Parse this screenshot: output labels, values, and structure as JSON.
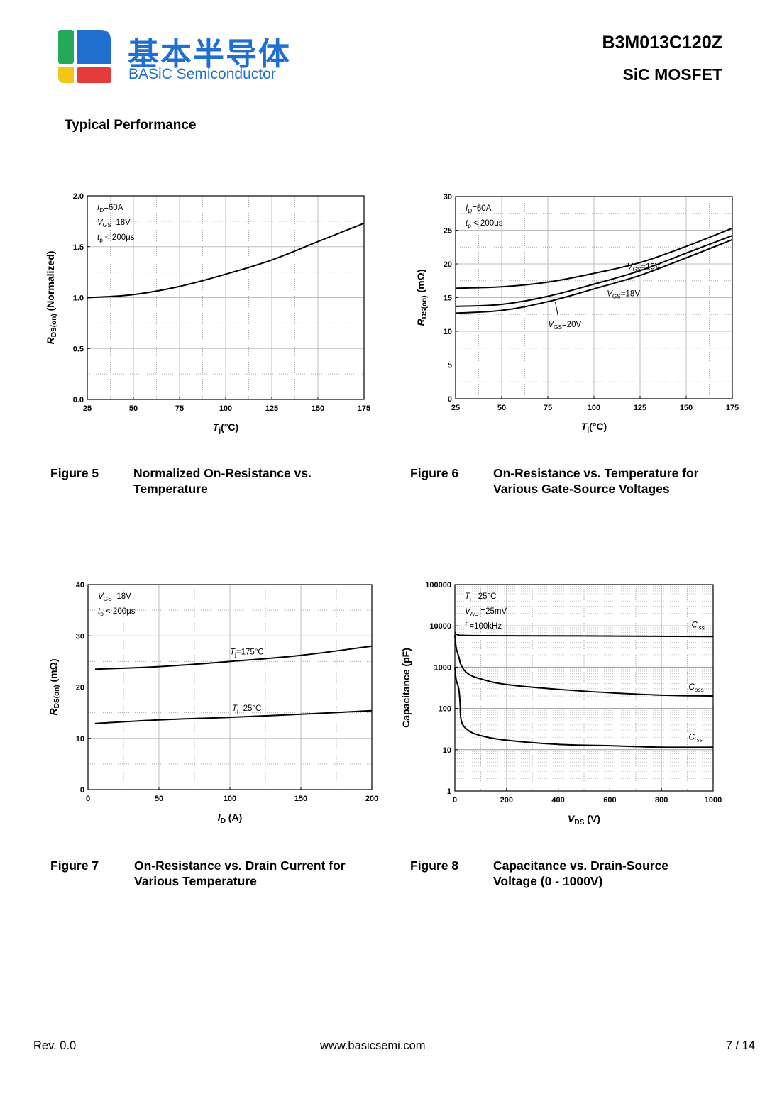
{
  "header": {
    "company_cn": "基本半导体",
    "company_en": "BASiC Semiconductor",
    "part_number": "B3M013C120Z",
    "device_type": "SiC MOSFET",
    "logo_colors": [
      "#22a95a",
      "#1f6fd1",
      "#f5c518",
      "#e63b3b"
    ]
  },
  "section_title": "Typical Performance",
  "figures": [
    {
      "number": "Figure 5",
      "caption": "Normalized On-Resistance vs.\nTemperature"
    },
    {
      "number": "Figure 6",
      "caption": "On-Resistance vs. Temperature for\nVarious Gate-Source Voltages"
    },
    {
      "number": "Figure 7",
      "caption": "On-Resistance vs. Drain Current for\nVarious Temperature"
    },
    {
      "number": "Figure 8",
      "caption": "Capacitance vs. Drain-Source\nVoltage (0 - 1000V)"
    }
  ],
  "chart_data": [
    {
      "type": "line",
      "xlabel": "Tj(°C)",
      "ylabel": "RDS(on) (Normalized)",
      "xlim": [
        25,
        175
      ],
      "ylim": [
        0,
        2.0
      ],
      "xticks": [
        "25",
        "50",
        "75",
        "100",
        "125",
        "150",
        "175"
      ],
      "yticks": [
        "0.0",
        "0.5",
        "1.0",
        "1.5",
        "2.0"
      ],
      "grid": true,
      "conditions": [
        "ID=60A",
        "VGS=18V",
        "tp < 200μs"
      ],
      "series": [
        {
          "x": [
            25,
            50,
            75,
            100,
            125,
            150,
            175
          ],
          "y": [
            1.0,
            1.03,
            1.11,
            1.23,
            1.37,
            1.55,
            1.73
          ]
        }
      ]
    },
    {
      "type": "line",
      "xlabel": "Tj(°C)",
      "ylabel": "RDS(on) (mΩ)",
      "xlim": [
        25,
        175
      ],
      "ylim": [
        0,
        30
      ],
      "xticks": [
        "25",
        "50",
        "75",
        "100",
        "125",
        "150",
        "175"
      ],
      "yticks": [
        "0",
        "5",
        "10",
        "15",
        "20",
        "25",
        "30"
      ],
      "grid": true,
      "conditions": [
        "ID=60A",
        "tp < 200μs"
      ],
      "series": [
        {
          "name": "VGS=15V",
          "x": [
            25,
            50,
            75,
            100,
            125,
            150,
            175
          ],
          "y": [
            16.4,
            16.6,
            17.3,
            18.6,
            20.2,
            22.6,
            25.3
          ]
        },
        {
          "name": "VGS=18V",
          "x": [
            25,
            50,
            75,
            100,
            125,
            150,
            175
          ],
          "y": [
            13.7,
            14.0,
            15.2,
            17.0,
            19.0,
            21.6,
            24.2
          ]
        },
        {
          "name": "VGS=20V",
          "x": [
            25,
            50,
            75,
            100,
            125,
            150,
            175
          ],
          "y": [
            12.7,
            13.1,
            14.4,
            16.3,
            18.3,
            20.9,
            23.6
          ]
        }
      ]
    },
    {
      "type": "line",
      "xlabel": "ID (A)",
      "ylabel": "RDS(on) (mΩ)",
      "xlim": [
        0,
        200
      ],
      "ylim": [
        0,
        40
      ],
      "xticks": [
        "0",
        "50",
        "100",
        "150",
        "200"
      ],
      "yticks": [
        "0",
        "10",
        "20",
        "30",
        "40"
      ],
      "grid": true,
      "conditions": [
        "VGS=18V",
        "tp < 200μs"
      ],
      "series": [
        {
          "name": "Tj=175°C",
          "x": [
            5,
            50,
            100,
            150,
            200
          ],
          "y": [
            23.5,
            24.0,
            25.0,
            26.2,
            28.0
          ]
        },
        {
          "name": "Tj=25°C",
          "x": [
            5,
            50,
            100,
            150,
            200
          ],
          "y": [
            12.9,
            13.6,
            14.1,
            14.7,
            15.4
          ]
        }
      ]
    },
    {
      "type": "line",
      "xlabel": "VDS (V)",
      "ylabel": "Capacitance (pF)",
      "xlim": [
        0,
        1000
      ],
      "ylim": [
        1,
        100000
      ],
      "yscale": "log",
      "xticks": [
        "0",
        "200",
        "400",
        "600",
        "800",
        "1000"
      ],
      "yticks": [
        "1",
        "10",
        "100",
        "1000",
        "10000",
        "100000"
      ],
      "grid": true,
      "conditions": [
        "Tj =25°C",
        "VAC =25mV",
        "f =100kHz"
      ],
      "series": [
        {
          "name": "Ciss",
          "x": [
            0,
            5,
            15,
            30,
            100,
            500,
            1000
          ],
          "y": [
            7000,
            6300,
            6000,
            5900,
            5800,
            5700,
            5500
          ]
        },
        {
          "name": "Coss",
          "x": [
            0,
            5,
            15,
            25,
            50,
            100,
            200,
            400,
            600,
            800,
            1000
          ],
          "y": [
            6000,
            3000,
            1800,
            1100,
            700,
            520,
            380,
            290,
            240,
            210,
            200
          ]
        },
        {
          "name": "Crss",
          "x": [
            0,
            5,
            15,
            20,
            25,
            50,
            100,
            200,
            400,
            600,
            800,
            1000
          ],
          "y": [
            1000,
            500,
            300,
            140,
            50,
            30,
            22,
            17,
            13.5,
            12.5,
            11.5,
            11.5
          ]
        }
      ]
    }
  ],
  "footer": {
    "revision": "Rev. 0.0",
    "website": "www.basicsemi.com",
    "page": "7 / 14"
  }
}
